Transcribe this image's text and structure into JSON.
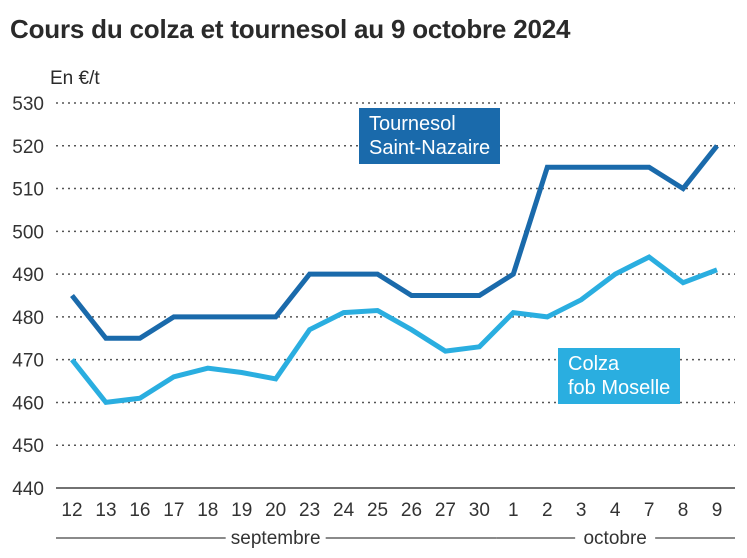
{
  "chart_data": {
    "type": "line",
    "title": "Cours du colza et tournesol au 9 octobre 2024",
    "ylabel": "En €/t",
    "ylim": [
      440,
      530
    ],
    "yticks": [
      440,
      450,
      460,
      470,
      480,
      490,
      500,
      510,
      520,
      530
    ],
    "grid": true,
    "categories": [
      "12",
      "13",
      "16",
      "17",
      "18",
      "19",
      "20",
      "23",
      "24",
      "25",
      "26",
      "27",
      "30",
      "1",
      "2",
      "3",
      "4",
      "7",
      "8",
      "9"
    ],
    "months": [
      {
        "label": "septembre",
        "from": 0,
        "to": 12
      },
      {
        "label": "octobre",
        "from": 13,
        "to": 19
      }
    ],
    "series": [
      {
        "name": "Tournesol Saint-Nazaire",
        "name_lines": [
          "Tournesol",
          "Saint-Nazaire"
        ],
        "color": "#1a6aab",
        "values": [
          485,
          475,
          475,
          480,
          480,
          480,
          480,
          490,
          490,
          490,
          485,
          485,
          485,
          490,
          515,
          515,
          515,
          515,
          510,
          520
        ]
      },
      {
        "name": "Colza fob Moselle",
        "name_lines": [
          "Colza",
          "fob Moselle"
        ],
        "color": "#2aaee0",
        "values": [
          470,
          460,
          461,
          466,
          468,
          467,
          465.5,
          477,
          481,
          481.5,
          477,
          472,
          473,
          481,
          480,
          484,
          490,
          494,
          488,
          491
        ]
      }
    ]
  }
}
